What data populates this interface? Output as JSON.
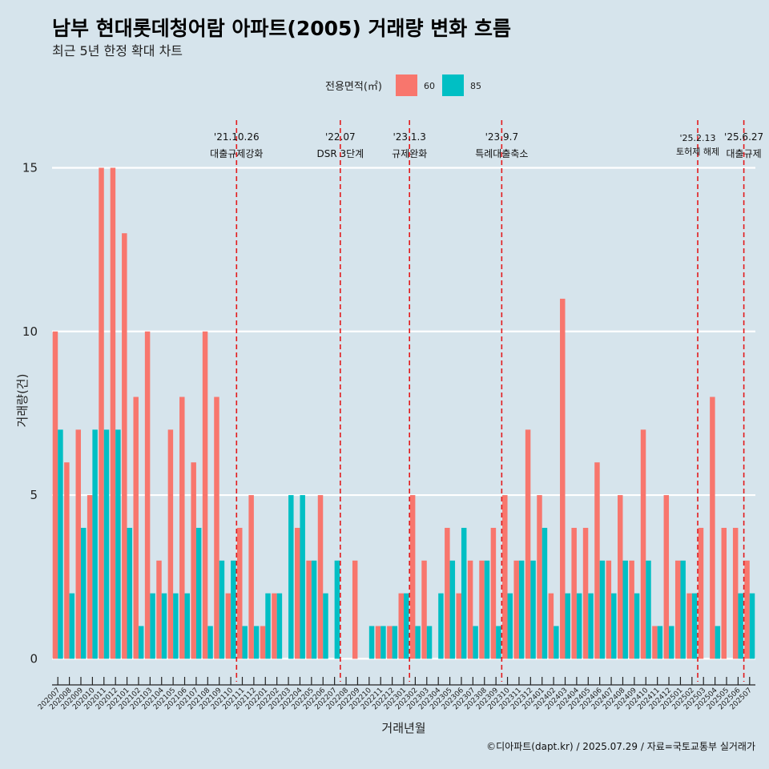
{
  "chart_data": {
    "type": "bar",
    "title": "남부 현대롯데청어람 아파트(2005) 거래량 변화 흐름",
    "subtitle": "최근 5년 한정 확대 차트",
    "xlabel": "거래년월",
    "ylabel": "거래량(건)",
    "ylim": [
      -0.7,
      16.7
    ],
    "yticks": [
      0,
      5,
      10,
      15
    ],
    "legend": {
      "title": "전용면적(㎡)",
      "position": "top",
      "entries": [
        "60",
        "85"
      ]
    },
    "colors": {
      "60": "#f8766d",
      "85": "#00bfc4"
    },
    "categories": [
      "202007",
      "202008",
      "202009",
      "202010",
      "202011",
      "202012",
      "202101",
      "202102",
      "202103",
      "202104",
      "202105",
      "202106",
      "202107",
      "202108",
      "202109",
      "202110",
      "202111",
      "202112",
      "202201",
      "202202",
      "202203",
      "202204",
      "202205",
      "202206",
      "202207",
      "202208",
      "202209",
      "202210",
      "202211",
      "202212",
      "202301",
      "202302",
      "202303",
      "202304",
      "202305",
      "202306",
      "202307",
      "202308",
      "202309",
      "202310",
      "202311",
      "202312",
      "202401",
      "202402",
      "202403",
      "202404",
      "202405",
      "202406",
      "202407",
      "202408",
      "202409",
      "202410",
      "202411",
      "202412",
      "202501",
      "202502",
      "202503",
      "202504",
      "202505",
      "202506",
      "202507"
    ],
    "series": [
      {
        "name": "60",
        "values": [
          10,
          6,
          7,
          5,
          15,
          15,
          13,
          8,
          10,
          3,
          7,
          8,
          6,
          10,
          8,
          2,
          4,
          5,
          1,
          2,
          0,
          4,
          3,
          5,
          0,
          0,
          3,
          0,
          1,
          1,
          2,
          5,
          3,
          0,
          4,
          2,
          3,
          3,
          4,
          5,
          3,
          7,
          5,
          2,
          11,
          4,
          4,
          6,
          3,
          5,
          3,
          7,
          1,
          5,
          3,
          2,
          4,
          8,
          4,
          4,
          3
        ]
      },
      {
        "name": "85",
        "values": [
          7,
          2,
          4,
          7,
          7,
          7,
          4,
          1,
          2,
          2,
          2,
          2,
          4,
          1,
          3,
          3,
          1,
          1,
          2,
          2,
          5,
          5,
          3,
          2,
          3,
          0,
          0,
          1,
          1,
          1,
          2,
          1,
          1,
          2,
          3,
          4,
          1,
          3,
          1,
          2,
          3,
          3,
          4,
          1,
          2,
          2,
          2,
          3,
          2,
          3,
          2,
          3,
          1,
          1,
          3,
          2,
          0,
          1,
          0,
          2,
          2
        ]
      }
    ],
    "events": [
      {
        "date": "'21.10.26",
        "label": "대출규제강화",
        "after": "202110"
      },
      {
        "date": "'22.07",
        "label": "DSR 3단계",
        "after": "202207"
      },
      {
        "date": "'23.1.3",
        "label": "규제완화",
        "after": "202301"
      },
      {
        "date": "'23.9.7",
        "label": "특례대출축소",
        "after": "202309"
      },
      {
        "date": "'25.2.13",
        "label": "토허제 해제",
        "after": "202502"
      },
      {
        "date": "'25.6.27",
        "label": "대출규제",
        "after": "202506"
      }
    ],
    "caption": "©디아파트(dapt.kr) / 2025.07.29 / 자료=국토교통부 실거래가"
  }
}
